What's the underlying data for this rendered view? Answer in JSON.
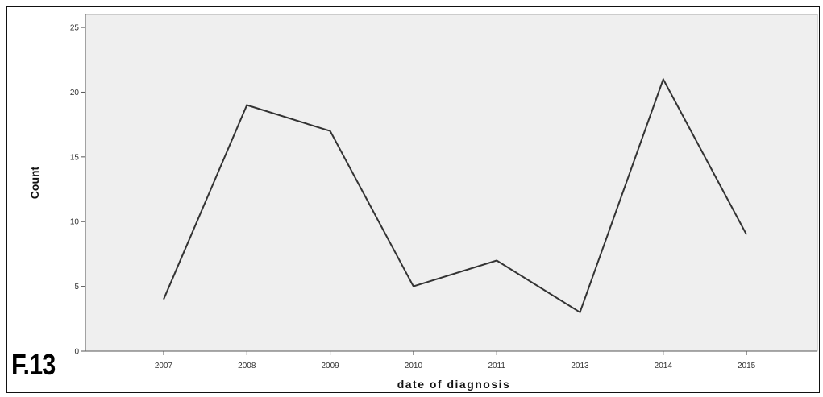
{
  "figure_label": "F.13",
  "chart_data": {
    "type": "line",
    "title": "",
    "xlabel": "date of diagnosis",
    "ylabel": "Count",
    "categories": [
      "2007",
      "2008",
      "2009",
      "2010",
      "2011",
      "2013",
      "2014",
      "2015"
    ],
    "series": [
      {
        "values": [
          4,
          19,
          17,
          5,
          7,
          3,
          21,
          9
        ]
      }
    ],
    "ylim": [
      0,
      26
    ],
    "yticks": [
      0,
      5,
      10,
      15,
      20,
      25
    ],
    "grid": false,
    "legend": "none",
    "colors": {
      "line": "#333333",
      "plot_bg": "#efefef",
      "axis": "#555555"
    }
  }
}
